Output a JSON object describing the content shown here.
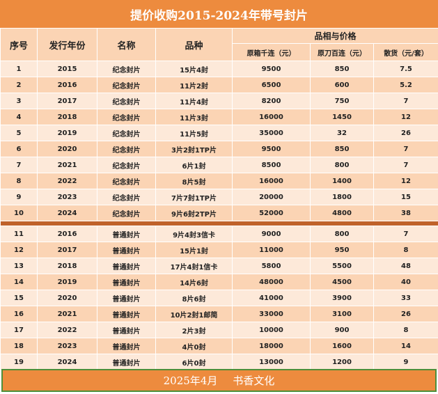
{
  "title": "提价收购2015-2024年带号封片",
  "headers": {
    "seq": "序号",
    "year": "发行年份",
    "name": "名称",
    "variety": "品种",
    "price_group": "品相与价格",
    "col1": "原箱千连（元）",
    "col2": "原刀百连（元）",
    "col3": "散货（元/套）"
  },
  "rows": [
    [
      "1",
      "2015",
      "纪念封片",
      "15片4封",
      "9500",
      "850",
      "7.5"
    ],
    [
      "2",
      "2016",
      "纪念封片",
      "11片2封",
      "6500",
      "600",
      "5.2"
    ],
    [
      "3",
      "2017",
      "纪念封片",
      "11片4封",
      "8200",
      "750",
      "7"
    ],
    [
      "4",
      "2018",
      "纪念封片",
      "11片3封",
      "16000",
      "1450",
      "12"
    ],
    [
      "5",
      "2019",
      "纪念封片",
      "11片5封",
      "35000",
      "32",
      "26"
    ],
    [
      "6",
      "2020",
      "纪念封片",
      "3片2封1TP片",
      "9500",
      "850",
      "7"
    ],
    [
      "7",
      "2021",
      "纪念封片",
      "6片1封",
      "8500",
      "800",
      "7"
    ],
    [
      "8",
      "2022",
      "纪念封片",
      "8片5封",
      "16000",
      "1400",
      "12"
    ],
    [
      "9",
      "2023",
      "纪念封片",
      "7片7封1TP片",
      "20000",
      "1800",
      "15"
    ],
    [
      "10",
      "2024",
      "纪念封片",
      "9片6封2TP片",
      "52000",
      "4800",
      "38"
    ],
    [
      "11",
      "2016",
      "普通封片",
      "9片4封3信卡",
      "9000",
      "800",
      "7"
    ],
    [
      "12",
      "2017",
      "普通封片",
      "15片1封",
      "11000",
      "950",
      "8"
    ],
    [
      "13",
      "2018",
      "普通封片",
      "17片4封1信卡",
      "5800",
      "5500",
      "48"
    ],
    [
      "14",
      "2019",
      "普通封片",
      "14片6封",
      "48000",
      "4500",
      "40"
    ],
    [
      "15",
      "2020",
      "普通封片",
      "8片6封",
      "41000",
      "3900",
      "33"
    ],
    [
      "16",
      "2021",
      "普通封片",
      "10片2封1邮简",
      "33000",
      "3100",
      "26"
    ],
    [
      "17",
      "2022",
      "普通封片",
      "2片3封",
      "10000",
      "900",
      "8"
    ],
    [
      "18",
      "2023",
      "普通封片",
      "4片0封",
      "18000",
      "1600",
      "14"
    ],
    [
      "19",
      "2024",
      "普通封片",
      "6片0封",
      "13000",
      "1200",
      "9"
    ]
  ],
  "footer": {
    "date": "2025年4月",
    "brand": "书香文化"
  }
}
